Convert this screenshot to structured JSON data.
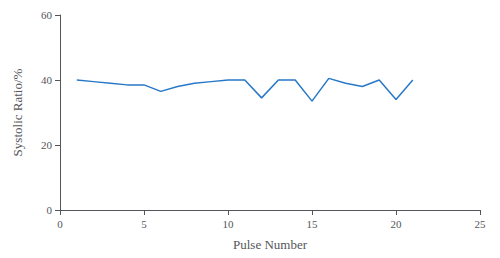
{
  "chart_data": {
    "type": "line",
    "xlabel": "Pulse Number",
    "ylabel": "Systolic Ratio/%",
    "x": [
      1,
      2,
      3,
      4,
      5,
      6,
      7,
      8,
      9,
      10,
      11,
      12,
      13,
      14,
      15,
      16,
      17,
      18,
      19,
      20,
      21
    ],
    "values": [
      40,
      39.5,
      39,
      38.5,
      38.5,
      36.5,
      38,
      39,
      39.5,
      40,
      40,
      34.5,
      40,
      40,
      33.5,
      40.5,
      39,
      38,
      40,
      34,
      40
    ],
    "color": "#2878c8",
    "xlim": [
      0,
      25
    ],
    "ylim": [
      0,
      60
    ],
    "xticks": [
      0,
      5,
      10,
      15,
      20,
      25
    ],
    "yticks": [
      0,
      20,
      40,
      60
    ],
    "grid": false
  }
}
